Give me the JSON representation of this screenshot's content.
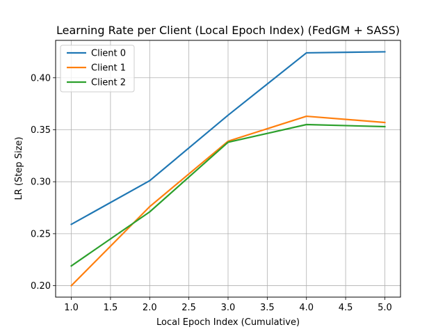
{
  "chart_data": {
    "type": "line",
    "title": "Learning Rate per Client (Local Epoch Index) (FedGM + SASS)",
    "xlabel": "Local Epoch Index (Cumulative)",
    "ylabel": "LR (Step Size)",
    "xlim": [
      0.8,
      5.2
    ],
    "ylim": [
      0.189,
      0.436
    ],
    "x": [
      1.0,
      2.0,
      3.0,
      4.0,
      5.0
    ],
    "xticks": [
      "1.0",
      "1.5",
      "2.0",
      "2.5",
      "3.0",
      "3.5",
      "4.0",
      "4.5",
      "5.0"
    ],
    "yticks": [
      "0.20",
      "0.25",
      "0.30",
      "0.35",
      "0.40"
    ],
    "grid": true,
    "legend_position": "upper-left",
    "series": [
      {
        "name": "Client 0",
        "color": "#1f77b4",
        "values": [
          0.259,
          0.301,
          0.364,
          0.424,
          0.425
        ]
      },
      {
        "name": "Client 1",
        "color": "#ff7f0e",
        "values": [
          0.2,
          0.276,
          0.339,
          0.363,
          0.357
        ]
      },
      {
        "name": "Client 2",
        "color": "#2ca02c",
        "values": [
          0.219,
          0.271,
          0.338,
          0.355,
          0.353
        ]
      }
    ]
  }
}
